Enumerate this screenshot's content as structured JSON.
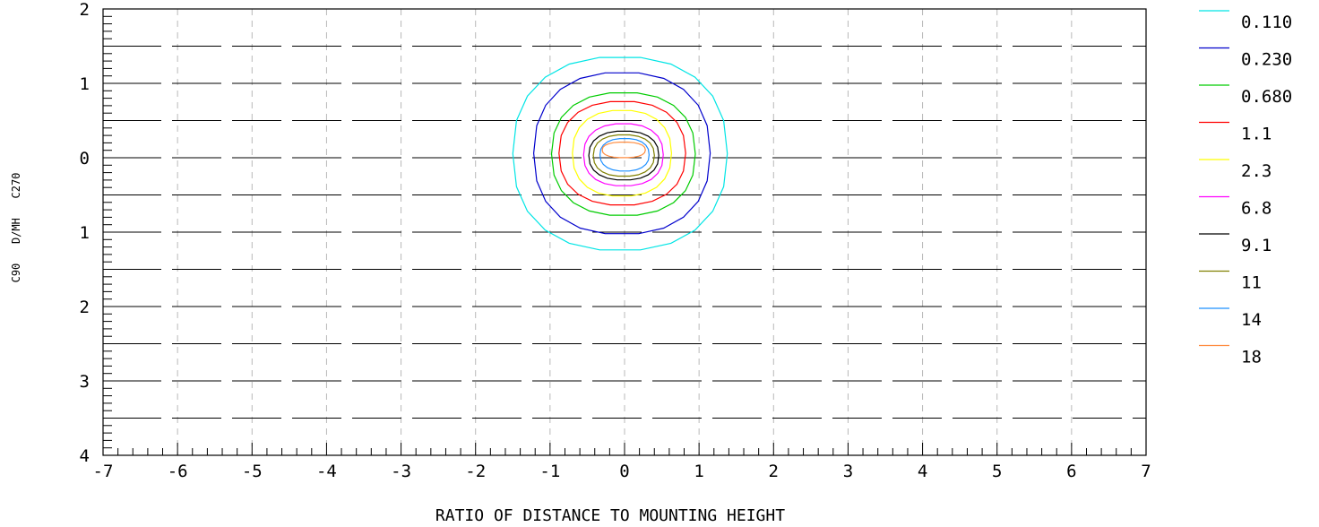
{
  "chart_data": {
    "type": "contour",
    "xlabel": "RATIO OF DISTANCE TO MOUNTING HEIGHT",
    "ylabel": "C90   D/MH   C270",
    "xlim": [
      -7,
      7
    ],
    "ylim": [
      -4,
      2
    ],
    "x_ticks": [
      -7,
      -6,
      -5,
      -4,
      -3,
      -2,
      -1,
      0,
      1,
      2,
      3,
      4,
      5,
      6,
      7
    ],
    "x_tick_labels": [
      "-7",
      "-6",
      "-5",
      "-4",
      "-3",
      "-2",
      "-1",
      "0",
      "1",
      "2",
      "3",
      "4",
      "5",
      "6",
      "7"
    ],
    "y_ticks": [
      2,
      1,
      0,
      -1,
      -2,
      -3,
      -4
    ],
    "y_tick_labels": [
      "2",
      "1",
      "0",
      "1",
      "2",
      "3",
      "4"
    ],
    "grid": true,
    "legend_placement": "right",
    "series": [
      {
        "name": "0.110",
        "color": "#00e5e5",
        "x_min": -1.5,
        "x_max": 1.38,
        "y_max": 1.36,
        "y_min": -1.25
      },
      {
        "name": "0.230",
        "color": "#0000cc",
        "x_min": -1.22,
        "x_max": 1.15,
        "y_max": 1.15,
        "y_min": -1.03
      },
      {
        "name": "0.680",
        "color": "#00cc00",
        "x_min": -0.98,
        "x_max": 0.95,
        "y_max": 0.88,
        "y_min": -0.78
      },
      {
        "name": "1.1",
        "color": "#ff0000",
        "x_min": -0.88,
        "x_max": 0.82,
        "y_max": 0.76,
        "y_min": -0.64
      },
      {
        "name": "2.3",
        "color": "#ffff00",
        "x_min": -0.7,
        "x_max": 0.63,
        "y_max": 0.64,
        "y_min": -0.52
      },
      {
        "name": "6.8",
        "color": "#ff00ff",
        "x_min": -0.55,
        "x_max": 0.52,
        "y_max": 0.46,
        "y_min": -0.38
      },
      {
        "name": "9.1",
        "color": "#000000",
        "x_min": -0.48,
        "x_max": 0.46,
        "y_max": 0.36,
        "y_min": -0.3
      },
      {
        "name": "11",
        "color": "#808000",
        "x_min": -0.42,
        "x_max": 0.4,
        "y_max": 0.31,
        "y_min": -0.25
      },
      {
        "name": "14",
        "color": "#1e90ff",
        "x_min": -0.33,
        "x_max": 0.33,
        "y_max": 0.26,
        "y_min": -0.18
      },
      {
        "name": "18",
        "color": "#ff8c40",
        "x_min": -0.3,
        "x_max": 0.28,
        "y_max": 0.21,
        "y_min": 0.0
      }
    ]
  }
}
